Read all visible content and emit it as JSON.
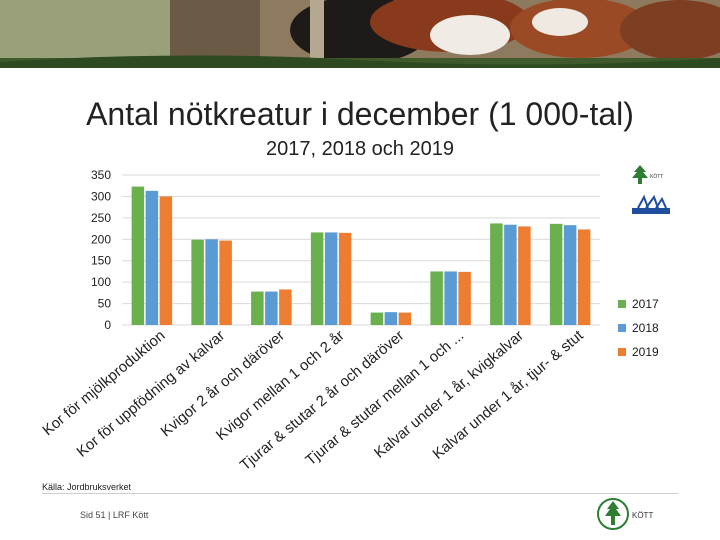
{
  "title": "Antal nötkreatur i december (1 000-tal)",
  "subtitle": "2017, 2018 och 2019",
  "source": "Källa: Jordbruksverket",
  "footer": "Sid 51 | LRF Kött",
  "logo_label": "KÖTT",
  "chart_data": {
    "type": "bar",
    "categories": [
      "Kor för mjölkproduktion",
      "Kor för uppfödning av kalvar",
      "Kvigor 2 år och däröver",
      "Kvigor mellan 1 och 2 år",
      "Tjurar & stutar 2 år och däröver",
      "Tjurar & stutar mellan 1 och ...",
      "Kalvar under 1 år, kvigkalvar",
      "Kalvar under 1 år, tjur- & stut"
    ],
    "series": [
      {
        "name": "2017",
        "color": "#6ab04c",
        "values": [
          323,
          199,
          78,
          216,
          29,
          125,
          237,
          236
        ]
      },
      {
        "name": "2018",
        "color": "#5b9bd5",
        "values": [
          313,
          200,
          78,
          216,
          30,
          125,
          234,
          233
        ]
      },
      {
        "name": "2019",
        "color": "#ed7d31",
        "values": [
          300,
          197,
          83,
          215,
          29,
          124,
          230,
          223
        ]
      }
    ],
    "yticks": [
      0,
      50,
      100,
      150,
      200,
      250,
      300,
      350
    ],
    "ylim": [
      0,
      350
    ],
    "grid": true,
    "legend": "right"
  }
}
